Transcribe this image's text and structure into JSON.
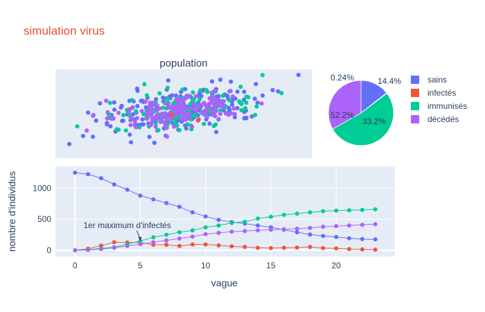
{
  "title": "simulation virus",
  "colors": {
    "sains": "#636efa",
    "infectes": "#ef553b",
    "immunises": "#00cc96",
    "decedes": "#ab63fa"
  },
  "chart_data": [
    {
      "type": "scatter",
      "title": "population",
      "grid": false,
      "axes_visible": false,
      "description_of_groups": [
        "sains",
        "infectés",
        "immunisés",
        "décédés"
      ]
    },
    {
      "type": "pie",
      "slices": [
        {
          "label": "sains",
          "value": 14.4,
          "text": "14.4%"
        },
        {
          "label": "infectés",
          "value": 0.24,
          "text": "0.24%"
        },
        {
          "label": "immunisés",
          "value": 52.2,
          "text": "52.2%"
        },
        {
          "label": "décédés",
          "value": 33.2,
          "text": "33.2%"
        }
      ],
      "legend": "right",
      "legend_entries": [
        "sains",
        "infectés",
        "immunisés",
        "décédés"
      ]
    },
    {
      "type": "line",
      "xlabel": "vague",
      "ylabel": "nombre d'individus",
      "xlim": [
        -1.5,
        24.5
      ],
      "ylim": [
        -100,
        1350
      ],
      "xticks": [
        0,
        5,
        10,
        15,
        20
      ],
      "yticks": [
        0,
        500,
        1000
      ],
      "x": [
        0,
        1,
        2,
        3,
        4,
        5,
        6,
        7,
        8,
        9,
        10,
        11,
        12,
        13,
        14,
        15,
        16,
        17,
        18,
        19,
        20,
        21,
        22,
        23
      ],
      "series": [
        {
          "key": "sains",
          "values": [
            1250,
            1225,
            1160,
            1060,
            975,
            880,
            820,
            760,
            700,
            610,
            545,
            490,
            455,
            430,
            400,
            370,
            330,
            290,
            255,
            230,
            215,
            195,
            180,
            175
          ]
        },
        {
          "key": "infectes",
          "values": [
            0,
            25,
            75,
            130,
            125,
            125,
            90,
            90,
            70,
            95,
            95,
            80,
            65,
            55,
            40,
            35,
            40,
            45,
            55,
            35,
            30,
            20,
            15,
            10
          ]
        },
        {
          "key": "immunises",
          "values": [
            0,
            10,
            30,
            50,
            100,
            150,
            210,
            250,
            290,
            320,
            370,
            400,
            440,
            460,
            510,
            540,
            570,
            590,
            610,
            630,
            640,
            645,
            650,
            660
          ]
        },
        {
          "key": "decedes",
          "values": [
            0,
            5,
            20,
            40,
            70,
            100,
            130,
            160,
            190,
            220,
            260,
            280,
            300,
            310,
            320,
            330,
            340,
            350,
            360,
            380,
            390,
            400,
            410,
            420
          ]
        }
      ],
      "annotation": {
        "text": "1er maximum d'infectés",
        "x": 5,
        "y": 125
      }
    }
  ]
}
